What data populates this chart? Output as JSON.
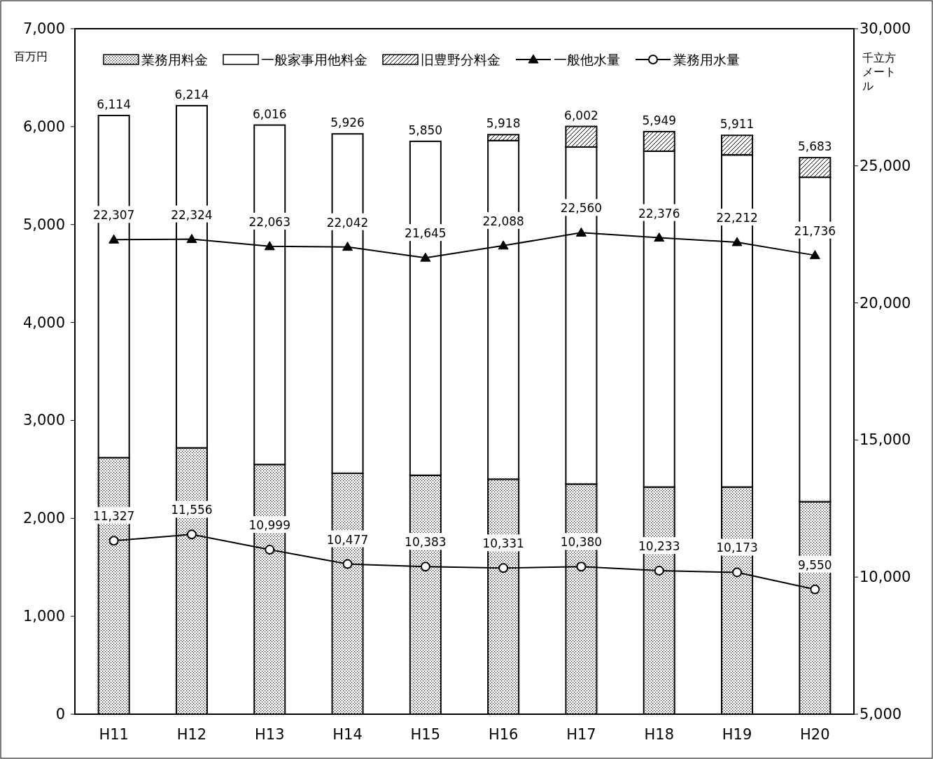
{
  "chart_data": {
    "type": "bar",
    "stacked": true,
    "categories": [
      "H11",
      "H12",
      "H13",
      "H14",
      "H15",
      "H16",
      "H17",
      "H18",
      "H19",
      "H20"
    ],
    "ylabel": "百万円",
    "y2label": "千立方メートル",
    "legend": "top",
    "ylim": [
      0,
      7000
    ],
    "yticks": [
      {
        "value": 0,
        "label": "0"
      },
      {
        "value": 1000,
        "label": "1,000"
      },
      {
        "value": 2000,
        "label": "2,000"
      },
      {
        "value": 3000,
        "label": "3,000"
      },
      {
        "value": 4000,
        "label": "4,000"
      },
      {
        "value": 5000,
        "label": "5,000"
      },
      {
        "value": 6000,
        "label": "6,000"
      },
      {
        "value": 7000,
        "label": "7,000"
      }
    ],
    "y2lim": [
      5000,
      30000
    ],
    "y2ticks": [
      {
        "value": 5000,
        "label": "5,000"
      },
      {
        "value": 10000,
        "label": "10,000"
      },
      {
        "value": 15000,
        "label": "15,000"
      },
      {
        "value": 20000,
        "label": "20,000"
      },
      {
        "value": 25000,
        "label": "25,000"
      },
      {
        "value": 30000,
        "label": "30,000"
      }
    ],
    "totals": [
      "6,114",
      "6,214",
      "6,016",
      "5,926",
      "5,850",
      "5,918",
      "6,002",
      "5,949",
      "5,911",
      "5,683"
    ],
    "series": [
      {
        "name": "業務用料金",
        "color": "#000000",
        "values": [
          2620,
          2720,
          2550,
          2460,
          2440,
          2400,
          2350,
          2320,
          2320,
          2170
        ]
      },
      {
        "name": "一般家事用他料金",
        "color": "#ffffff",
        "values": [
          3494,
          3494,
          3466,
          3466,
          3410,
          3458,
          3442,
          3429,
          3391,
          3313
        ]
      },
      {
        "name": "旧豊野分料金",
        "color": "#000000",
        "values": [
          null,
          null,
          null,
          null,
          null,
          60,
          210,
          200,
          200,
          200
        ]
      },
      {
        "name": "一般他水量",
        "type": "line",
        "axis": "y2",
        "color": "#000000",
        "marker": "triangle",
        "values": [
          22307,
          22324,
          22063,
          22042,
          21645,
          22088,
          22560,
          22376,
          22212,
          21736
        ],
        "value_labels": [
          "22,307",
          "22,324",
          "22,063",
          "22,042",
          "21,645",
          "22,088",
          "22,560",
          "22,376",
          "22,212",
          "21,736"
        ]
      },
      {
        "name": "業務用水量",
        "type": "line",
        "axis": "y2",
        "color": "#000000",
        "marker": "circle",
        "values": [
          11327,
          11556,
          10999,
          10477,
          10383,
          10331,
          10380,
          10233,
          10173,
          9550
        ],
        "value_labels": [
          "11,327",
          "11,556",
          "10,999",
          "10,477",
          "10,383",
          "10,331",
          "10,380",
          "10,233",
          "10,173",
          "9,550"
        ]
      }
    ]
  }
}
